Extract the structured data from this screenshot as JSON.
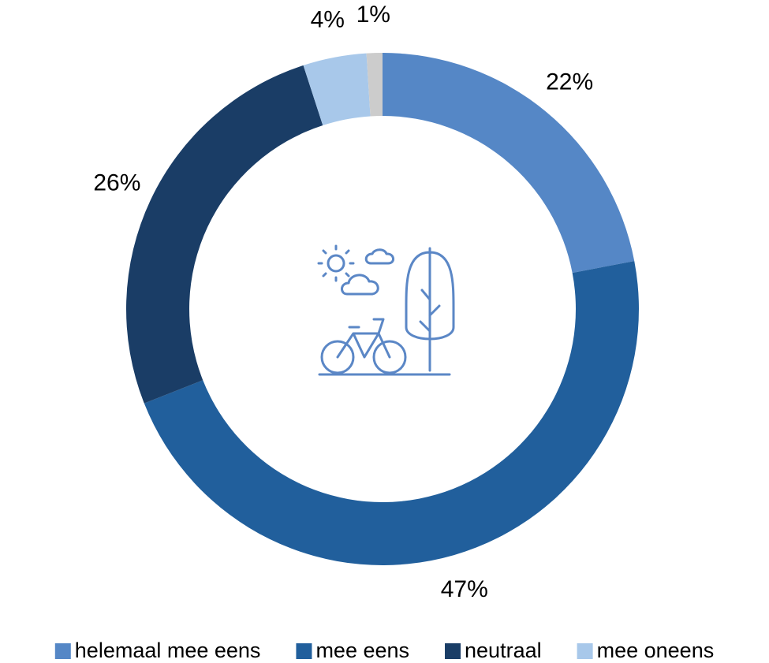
{
  "chart_data": {
    "type": "pie",
    "categories": [
      "helemaal mee eens",
      "mee eens",
      "neutraal",
      "mee oneens",
      null
    ],
    "values": [
      22,
      47,
      26,
      4,
      1
    ],
    "value_labels": [
      "22%",
      "47%",
      "26%",
      "4%",
      "1%"
    ],
    "colors": [
      "#5587c6",
      "#215f9c",
      "#1a3d66",
      "#a8c8ea",
      "#cccccc"
    ],
    "donut": true,
    "legend": "bottom"
  }
}
